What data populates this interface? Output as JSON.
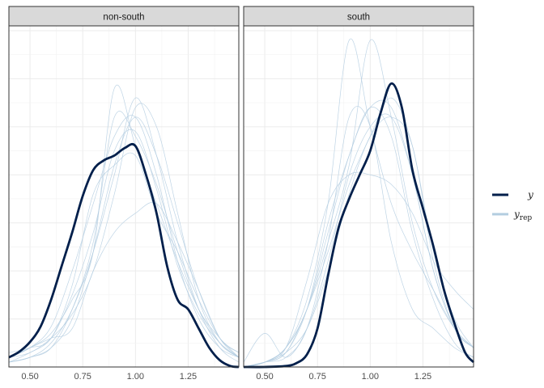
{
  "chart_data": {
    "type": "line",
    "subtype": "density-overlay",
    "title": "",
    "xlabel": "",
    "ylabel": "",
    "xlim": [
      0.4,
      1.49
    ],
    "x_ticks": [
      "0.50",
      "0.75",
      "1.00",
      "1.25"
    ],
    "x_tick_values": [
      0.5,
      0.75,
      1.0,
      1.25
    ],
    "y_axis_labels_shown": false,
    "grid": true,
    "legend_position": "right",
    "legend": [
      {
        "key": "y",
        "label": "y",
        "color": "#011f4b"
      },
      {
        "key": "yrep",
        "label": "y",
        "label_sub": "rep",
        "color": "#b3cde0"
      }
    ],
    "colors": {
      "y": "#011f4b",
      "yrep": "#b3cde0",
      "strip_fill": "#d9d9d9",
      "grid": "#ebebeb"
    },
    "panels": [
      {
        "label": "non-south",
        "series": [
          {
            "name": "y",
            "x": [
              0.4,
              0.45,
              0.5,
              0.55,
              0.6,
              0.65,
              0.7,
              0.75,
              0.8,
              0.85,
              0.9,
              0.95,
              1.0,
              1.05,
              1.1,
              1.15,
              1.2,
              1.25,
              1.3,
              1.35,
              1.4,
              1.45,
              1.49
            ],
            "y": [
              0.1,
              0.16,
              0.26,
              0.42,
              0.7,
              1.05,
              1.4,
              1.78,
              2.05,
              2.15,
              2.2,
              2.28,
              2.3,
              2.0,
              1.6,
              1.05,
              0.7,
              0.6,
              0.4,
              0.2,
              0.07,
              0.01,
              0.0
            ]
          },
          {
            "name": "yrep",
            "x": [
              0.4,
              0.5,
              0.6,
              0.7,
              0.8,
              0.9,
              1.0,
              1.1,
              1.2,
              1.3,
              1.4,
              1.49
            ],
            "y": [
              0.1,
              0.2,
              0.42,
              1.0,
              1.7,
              2.4,
              2.6,
              2.0,
              1.1,
              0.5,
              0.2,
              0.1
            ]
          },
          {
            "name": "yrep",
            "x": [
              0.4,
              0.5,
              0.6,
              0.7,
              0.8,
              0.9,
              1.0,
              1.1,
              1.2,
              1.3,
              1.4,
              1.49
            ],
            "y": [
              0.05,
              0.15,
              0.3,
              0.75,
              1.4,
              2.25,
              2.45,
              1.85,
              1.05,
              0.55,
              0.25,
              0.1
            ]
          },
          {
            "name": "yrep",
            "x": [
              0.4,
              0.5,
              0.6,
              0.7,
              0.8,
              0.9,
              1.0,
              1.1,
              1.2,
              1.3,
              1.4,
              1.49
            ],
            "y": [
              0.1,
              0.2,
              0.35,
              0.7,
              1.2,
              2.9,
              2.3,
              1.7,
              1.1,
              0.6,
              0.25,
              0.1
            ]
          },
          {
            "name": "yrep",
            "x": [
              0.4,
              0.5,
              0.6,
              0.7,
              0.8,
              0.9,
              1.0,
              1.1,
              1.2,
              1.3,
              1.4,
              1.49
            ],
            "y": [
              0.05,
              0.1,
              0.25,
              0.6,
              1.2,
              2.0,
              2.8,
              2.2,
              1.3,
              0.6,
              0.2,
              0.05
            ]
          },
          {
            "name": "yrep",
            "x": [
              0.4,
              0.5,
              0.6,
              0.7,
              0.8,
              0.9,
              1.0,
              1.1,
              1.2,
              1.3,
              1.4,
              1.49
            ],
            "y": [
              0.15,
              0.2,
              0.3,
              0.85,
              1.8,
              2.1,
              2.2,
              1.6,
              1.2,
              0.7,
              0.3,
              0.15
            ]
          },
          {
            "name": "yrep",
            "x": [
              0.4,
              0.5,
              0.6,
              0.7,
              0.8,
              0.9,
              1.0,
              1.1,
              1.2,
              1.3,
              1.4,
              1.49
            ],
            "y": [
              0.05,
              0.1,
              0.2,
              0.6,
              1.3,
              2.6,
              2.4,
              1.9,
              1.2,
              0.6,
              0.3,
              0.1
            ]
          },
          {
            "name": "yrep",
            "x": [
              0.4,
              0.5,
              0.6,
              0.7,
              0.8,
              0.9,
              1.0,
              1.1,
              1.2,
              1.3,
              1.4,
              1.49
            ],
            "y": [
              0.1,
              0.2,
              0.3,
              0.4,
              1.0,
              1.4,
              1.6,
              1.7,
              1.3,
              0.8,
              0.3,
              0.1
            ]
          },
          {
            "name": "yrep",
            "x": [
              0.4,
              0.5,
              0.6,
              0.7,
              0.8,
              0.9,
              1.0,
              1.1,
              1.2,
              1.3,
              1.4,
              1.49
            ],
            "y": [
              0.05,
              0.1,
              0.2,
              0.5,
              1.2,
              2.1,
              2.6,
              2.2,
              1.5,
              0.8,
              0.3,
              0.15
            ]
          },
          {
            "name": "yrep",
            "x": [
              0.4,
              0.5,
              0.6,
              0.7,
              0.8,
              0.9,
              1.0,
              1.1,
              1.2,
              1.3,
              1.4,
              1.49
            ],
            "y": [
              0.1,
              0.15,
              0.3,
              0.55,
              1.0,
              1.8,
              2.7,
              2.5,
              1.6,
              0.7,
              0.25,
              0.1
            ]
          }
        ]
      },
      {
        "label": "south",
        "series": [
          {
            "name": "y",
            "x": [
              0.4,
              0.5,
              0.6,
              0.65,
              0.7,
              0.75,
              0.8,
              0.85,
              0.9,
              0.95,
              1.0,
              1.05,
              1.1,
              1.15,
              1.2,
              1.25,
              1.3,
              1.35,
              1.4,
              1.45,
              1.49
            ],
            "y": [
              0.0,
              0.0,
              0.01,
              0.04,
              0.13,
              0.4,
              0.95,
              1.45,
              1.75,
              2.0,
              2.25,
              2.65,
              2.95,
              2.7,
              2.05,
              1.65,
              1.25,
              0.8,
              0.45,
              0.15,
              0.05
            ]
          },
          {
            "name": "yrep",
            "x": [
              0.4,
              0.5,
              0.6,
              0.7,
              0.8,
              0.9,
              1.0,
              1.1,
              1.2,
              1.3,
              1.4,
              1.49
            ],
            "y": [
              0.0,
              0.05,
              0.15,
              0.6,
              1.5,
              2.2,
              2.7,
              2.4,
              1.4,
              0.7,
              0.25,
              0.1
            ]
          },
          {
            "name": "yrep",
            "x": [
              0.4,
              0.5,
              0.6,
              0.7,
              0.8,
              0.9,
              1.0,
              1.1,
              1.2,
              1.3,
              1.4,
              1.49
            ],
            "y": [
              0.05,
              0.35,
              0.1,
              0.4,
              1.1,
              2.0,
              2.5,
              2.6,
              2.0,
              1.0,
              0.4,
              0.2
            ]
          },
          {
            "name": "yrep",
            "x": [
              0.4,
              0.5,
              0.6,
              0.7,
              0.8,
              0.9,
              1.0,
              1.1,
              1.2,
              1.3,
              1.4,
              1.49
            ],
            "y": [
              0.0,
              0.05,
              0.2,
              0.7,
              1.7,
              3.4,
              2.5,
              1.7,
              1.2,
              0.8,
              0.4,
              0.2
            ]
          },
          {
            "name": "yrep",
            "x": [
              0.4,
              0.5,
              0.6,
              0.7,
              0.8,
              0.9,
              1.0,
              1.1,
              1.2,
              1.3,
              1.4,
              1.49
            ],
            "y": [
              0.0,
              0.05,
              0.2,
              0.6,
              1.3,
              2.1,
              3.4,
              2.6,
              1.5,
              0.8,
              0.4,
              0.2
            ]
          },
          {
            "name": "yrep",
            "x": [
              0.4,
              0.5,
              0.6,
              0.7,
              0.8,
              0.9,
              1.0,
              1.1,
              1.2,
              1.3,
              1.4,
              1.49
            ],
            "y": [
              0.0,
              0.05,
              0.15,
              0.4,
              1.0,
              1.8,
              2.4,
              2.6,
              2.3,
              1.1,
              0.4,
              0.2
            ]
          },
          {
            "name": "yrep",
            "x": [
              0.4,
              0.5,
              0.6,
              0.7,
              0.8,
              0.9,
              1.0,
              1.1,
              1.2,
              1.3,
              1.4,
              1.49
            ],
            "y": [
              0.0,
              0.05,
              0.2,
              0.9,
              1.7,
              2.0,
              2.0,
              1.9,
              1.6,
              1.1,
              0.8,
              0.6
            ]
          },
          {
            "name": "yrep",
            "x": [
              0.4,
              0.5,
              0.6,
              0.7,
              0.8,
              0.9,
              1.0,
              1.1,
              1.2,
              1.3,
              1.4,
              1.49
            ],
            "y": [
              0.0,
              0.05,
              0.15,
              0.6,
              1.2,
              1.9,
              2.4,
              2.8,
              2.3,
              1.2,
              0.5,
              0.2
            ]
          },
          {
            "name": "yrep",
            "x": [
              0.4,
              0.5,
              0.6,
              0.7,
              0.8,
              0.9,
              1.0,
              1.1,
              1.2,
              1.3,
              1.4,
              1.49
            ],
            "y": [
              0.0,
              0.05,
              0.1,
              0.4,
              1.3,
              2.6,
              2.5,
              1.3,
              0.6,
              0.4,
              0.2,
              0.1
            ]
          },
          {
            "name": "yrep",
            "x": [
              0.4,
              0.5,
              0.6,
              0.7,
              0.8,
              0.9,
              1.0,
              1.1,
              1.2,
              1.3,
              1.4,
              1.49
            ],
            "y": [
              0.0,
              0.05,
              0.2,
              0.6,
              1.4,
              2.2,
              2.7,
              2.7,
              2.0,
              1.0,
              0.4,
              0.2
            ]
          }
        ]
      }
    ]
  }
}
